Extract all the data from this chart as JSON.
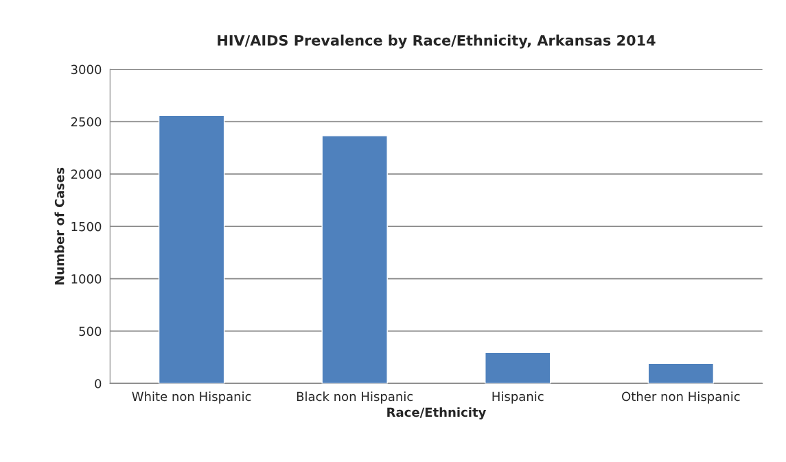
{
  "chart_data": {
    "type": "bar",
    "title": "HIV/AIDS Prevalence by Race/Ethnicity, Arkansas 2014",
    "xlabel": "Race/Ethnicity",
    "ylabel": "Number of Cases",
    "categories": [
      "White non Hispanic",
      "Black non Hispanic",
      "Hispanic",
      "Other non Hispanic"
    ],
    "values": [
      2560,
      2365,
      295,
      190
    ],
    "color": "#4f81bd",
    "ylim": [
      0,
      3000
    ],
    "yticks": [
      0,
      500,
      1000,
      1500,
      2000,
      2500,
      3000
    ],
    "grid": "y",
    "legend": false
  }
}
